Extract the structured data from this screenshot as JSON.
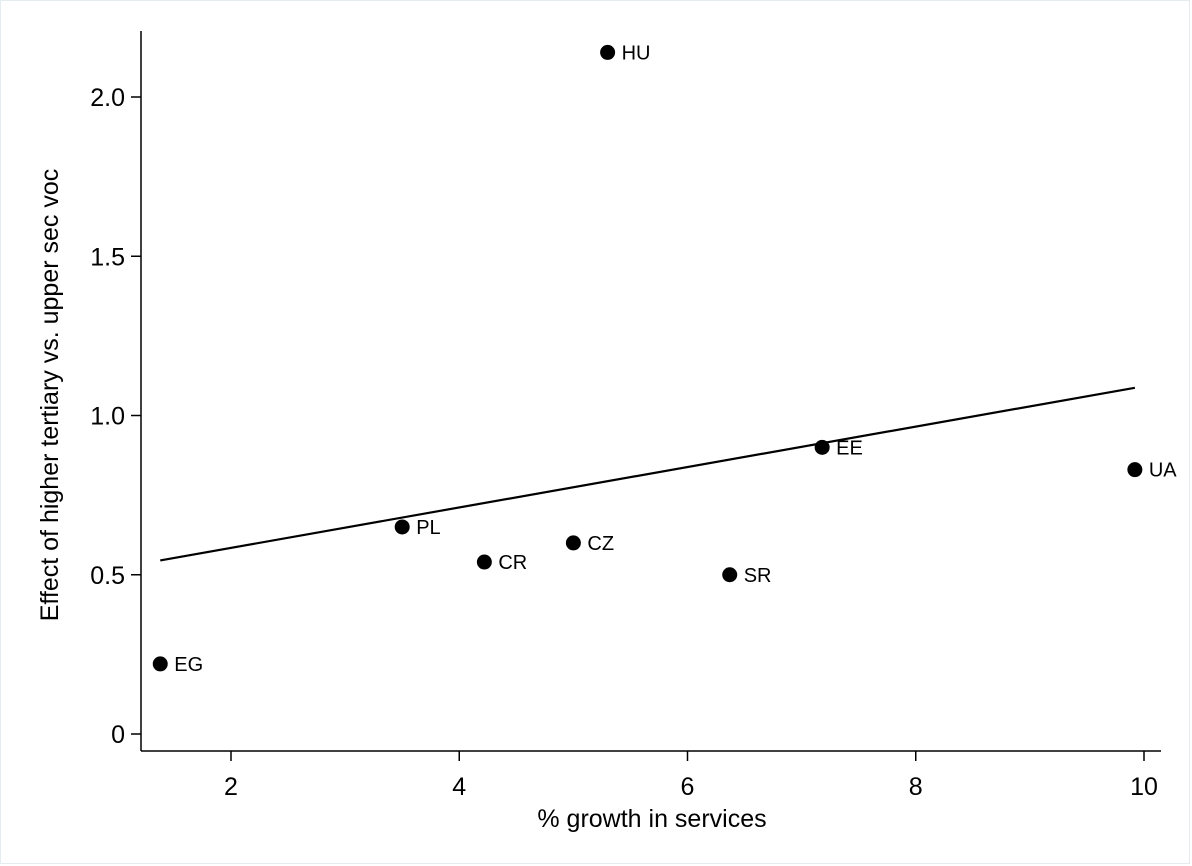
{
  "chart_data": {
    "type": "scatter",
    "xlabel": "% growth in services",
    "ylabel": "Effect of higher tertiary vs. upper sec voc",
    "xlim": [
      1.22,
      10.16
    ],
    "ylim": [
      -0.05,
      2.2
    ],
    "x_ticks": [
      2,
      4,
      6,
      8,
      10
    ],
    "y_ticks": [
      0,
      0.5,
      1.0,
      1.5,
      2.0
    ],
    "x_tick_labels": [
      "2",
      "4",
      "6",
      "8",
      "10"
    ],
    "y_tick_labels": [
      "0",
      "0.5",
      "1.0",
      "1.5",
      "2.0"
    ],
    "grid": false,
    "points": [
      {
        "label": "HU",
        "x": 5.3,
        "y": 2.14
      },
      {
        "label": "EE",
        "x": 7.18,
        "y": 0.9
      },
      {
        "label": "UA",
        "x": 9.92,
        "y": 0.83
      },
      {
        "label": "PL",
        "x": 3.5,
        "y": 0.65
      },
      {
        "label": "CZ",
        "x": 5.0,
        "y": 0.6
      },
      {
        "label": "CR",
        "x": 4.22,
        "y": 0.54
      },
      {
        "label": "SR",
        "x": 6.37,
        "y": 0.5
      },
      {
        "label": "EG",
        "x": 1.38,
        "y": 0.22
      }
    ],
    "fit_line": {
      "x": [
        1.38,
        9.92
      ],
      "y": [
        0.545,
        1.087
      ]
    },
    "colors": {
      "marker": "#000000",
      "line": "#000000",
      "axis": "#000000"
    }
  }
}
